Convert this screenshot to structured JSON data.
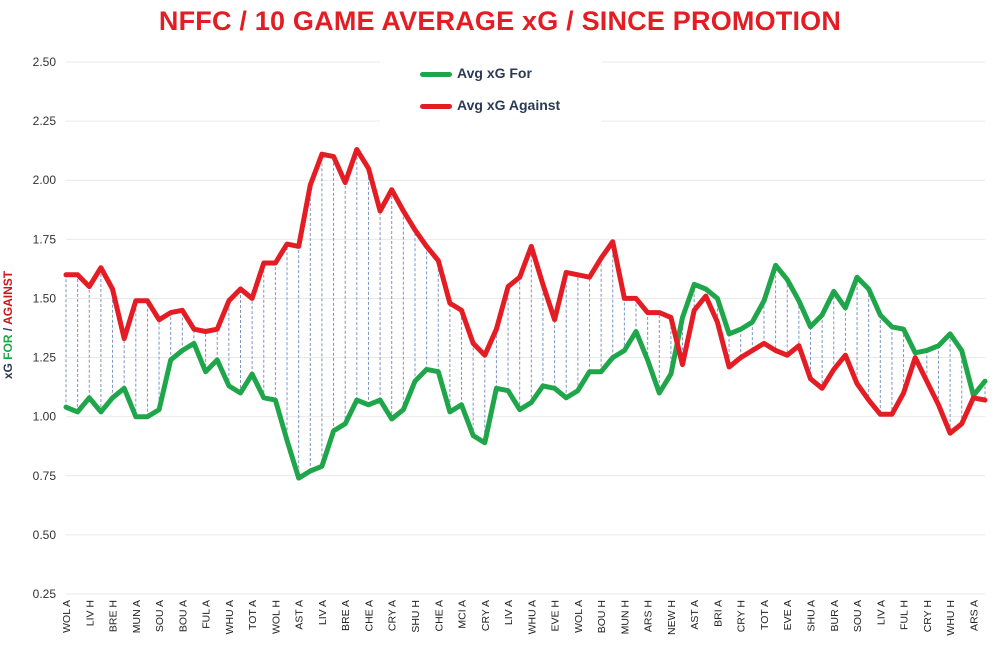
{
  "chart_data": {
    "type": "line",
    "title": "NFFC / 10 GAME AVERAGE xG / SINCE PROMOTION",
    "ylabel": {
      "part1": "xG ",
      "part2": "FOR",
      "part3": " / ",
      "part4": "AGAINST"
    },
    "ylim": [
      0.25,
      2.5
    ],
    "yticks": [
      "0.25",
      "0.50",
      "0.75",
      "1.00",
      "1.25",
      "1.50",
      "1.75",
      "2.00",
      "2.25",
      "2.50"
    ],
    "x_tick_labels": [
      "WOL A",
      "LIV H",
      "BRE H",
      "MUN A",
      "SOU A",
      "BOU A",
      "FUL A",
      "WHU A",
      "TOT A",
      "WOL H",
      "AST A",
      "LIV A",
      "BRE A",
      "CHE A",
      "CRY A",
      "SHU H",
      "CHE A",
      "MCI A",
      "CRY A",
      "LIV A",
      "WHU A",
      "EVE H",
      "WOL A",
      "BOU H",
      "MUN H",
      "ARS H",
      "NEW H",
      "AST A",
      "BRI A",
      "CRY H",
      "TOT A",
      "EVE A",
      "SHU A",
      "BUR A",
      "SOU A",
      "LIV A",
      "FUL H",
      "CRY H",
      "WHU H",
      "ARS A"
    ],
    "legend": [
      "Avg xG For",
      "Avg xG Against"
    ],
    "colors": {
      "for": "#1fa64a",
      "against": "#e31d23",
      "droplines": "#7f94c4",
      "grid": "#e9e9e9",
      "title": "#e31d23"
    },
    "series": [
      {
        "name": "Avg xG For",
        "values": [
          1.04,
          1.02,
          1.08,
          1.02,
          1.08,
          1.12,
          1.0,
          1.0,
          1.03,
          1.24,
          1.28,
          1.31,
          1.19,
          1.24,
          1.13,
          1.1,
          1.18,
          1.08,
          1.07,
          0.9,
          0.74,
          0.77,
          0.79,
          0.94,
          0.97,
          1.07,
          1.05,
          1.07,
          0.99,
          1.03,
          1.15,
          1.2,
          1.19,
          1.02,
          1.05,
          0.92,
          0.89,
          1.12,
          1.11,
          1.03,
          1.06,
          1.13,
          1.12,
          1.08,
          1.11,
          1.19,
          1.19,
          1.25,
          1.28,
          1.36,
          1.24,
          1.1,
          1.18,
          1.42,
          1.56,
          1.54,
          1.5,
          1.35,
          1.37,
          1.4,
          1.49,
          1.64,
          1.58,
          1.49,
          1.38,
          1.43,
          1.53,
          1.46,
          1.59,
          1.54,
          1.43,
          1.38,
          1.37,
          1.27,
          1.28,
          1.3,
          1.35,
          1.28,
          1.09,
          1.15
        ]
      },
      {
        "name": "Avg xG Against",
        "values": [
          1.6,
          1.6,
          1.55,
          1.63,
          1.54,
          1.33,
          1.49,
          1.49,
          1.41,
          1.44,
          1.45,
          1.37,
          1.36,
          1.37,
          1.49,
          1.54,
          1.5,
          1.65,
          1.65,
          1.73,
          1.72,
          1.98,
          2.11,
          2.1,
          1.99,
          2.13,
          2.05,
          1.87,
          1.96,
          1.87,
          1.79,
          1.72,
          1.66,
          1.48,
          1.45,
          1.31,
          1.26,
          1.37,
          1.55,
          1.59,
          1.72,
          1.56,
          1.41,
          1.61,
          1.6,
          1.59,
          1.67,
          1.74,
          1.5,
          1.5,
          1.44,
          1.44,
          1.42,
          1.22,
          1.45,
          1.51,
          1.4,
          1.21,
          1.25,
          1.28,
          1.31,
          1.28,
          1.26,
          1.3,
          1.16,
          1.12,
          1.2,
          1.26,
          1.14,
          1.07,
          1.01,
          1.01,
          1.1,
          1.25,
          1.15,
          1.05,
          0.93,
          0.97,
          1.08,
          1.07
        ]
      }
    ]
  }
}
